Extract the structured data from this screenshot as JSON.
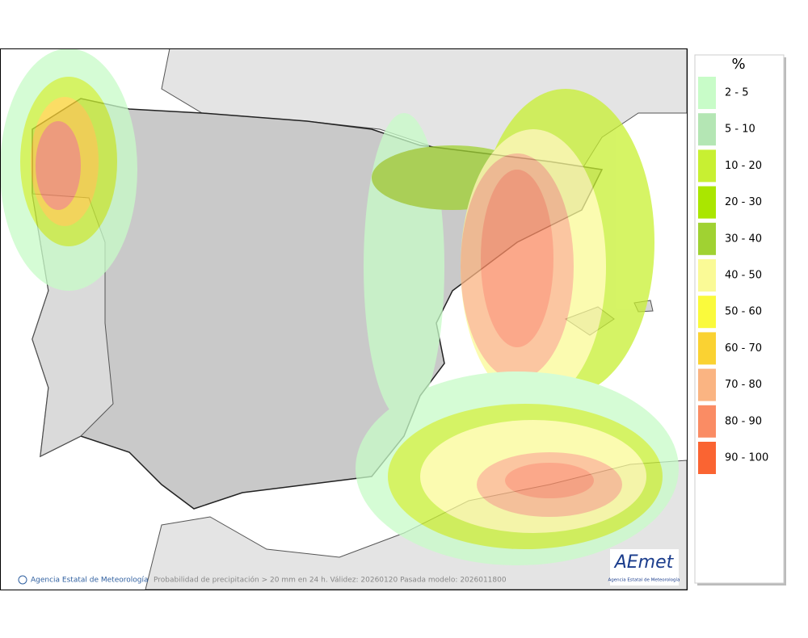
{
  "legend": {
    "title": "%",
    "items": [
      {
        "label": "2 - 5",
        "color": "#c8fcc8"
      },
      {
        "label": "5 - 10",
        "color": "#b4e6b4"
      },
      {
        "label": "10 - 20",
        "color": "#c8f032"
      },
      {
        "label": "20 - 30",
        "color": "#aae600"
      },
      {
        "label": "30 - 40",
        "color": "#a0d232"
      },
      {
        "label": "40 - 50",
        "color": "#fafa96"
      },
      {
        "label": "50 - 60",
        "color": "#fafa3c"
      },
      {
        "label": "60 - 70",
        "color": "#fad232"
      },
      {
        "label": "70 - 80",
        "color": "#fab482"
      },
      {
        "label": "80 - 90",
        "color": "#fa8c64"
      },
      {
        "label": "90 - 100",
        "color": "#fa6432"
      }
    ]
  },
  "footer": {
    "credit": "Agencia Estatal de Meteorología",
    "caption": "Probabilidad de precipitación > 20 mm en 24 h. Válidez: 20260120 Pasada modelo: 2026011800"
  },
  "logo": {
    "name": "AEmet",
    "subtitle": "Agencia Estatal de Meteorología"
  }
}
